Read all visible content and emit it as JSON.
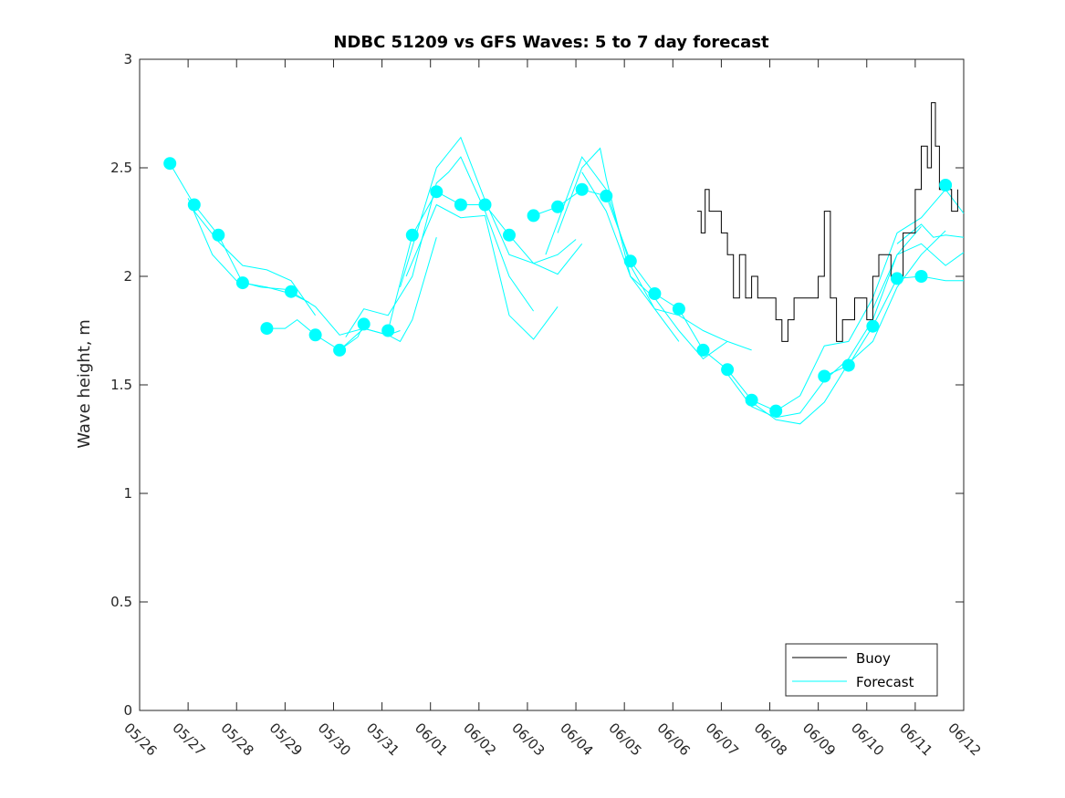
{
  "chart_data": {
    "type": "line",
    "title": "NDBC 51209 vs GFS Waves: 5 to 7 day forecast",
    "xlabel": "",
    "ylabel": "Wave height, m",
    "x_unit": "day",
    "xlim": [
      "05/26",
      "06/12"
    ],
    "ylim": [
      0,
      3
    ],
    "x_ticks": [
      "05/26",
      "05/27",
      "05/28",
      "05/29",
      "05/30",
      "05/31",
      "06/01",
      "06/02",
      "06/03",
      "06/04",
      "06/05",
      "06/06",
      "06/07",
      "06/08",
      "06/09",
      "06/10",
      "06/11",
      "06/12"
    ],
    "y_ticks": [
      "0",
      "0.5",
      "1",
      "1.5",
      "2",
      "2.5",
      "3"
    ],
    "grid": false,
    "legend_position": "bottom-right",
    "colors": {
      "buoy": "#000000",
      "forecast": "#00ffff",
      "axes": "#262626"
    },
    "legend": [
      {
        "label": "Buoy",
        "color": "#000000"
      },
      {
        "label": "Forecast",
        "color": "#00ffff"
      }
    ],
    "buoy": {
      "name": "Buoy",
      "points": [
        [
          "06/06 12:00",
          2.3
        ],
        [
          "06/06 14:00",
          2.2
        ],
        [
          "06/06 16:00",
          2.4
        ],
        [
          "06/06 18:00",
          2.3
        ],
        [
          "06/07 00:00",
          2.2
        ],
        [
          "06/07 03:00",
          2.1
        ],
        [
          "06/07 06:00",
          1.9
        ],
        [
          "06/07 09:00",
          2.1
        ],
        [
          "06/07 12:00",
          1.9
        ],
        [
          "06/07 15:00",
          2.0
        ],
        [
          "06/07 18:00",
          1.9
        ],
        [
          "06/08 00:00",
          1.9
        ],
        [
          "06/08 03:00",
          1.8
        ],
        [
          "06/08 06:00",
          1.7
        ],
        [
          "06/08 09:00",
          1.8
        ],
        [
          "06/08 12:00",
          1.9
        ],
        [
          "06/08 18:00",
          1.9
        ],
        [
          "06/09 00:00",
          2.0
        ],
        [
          "06/09 03:00",
          2.3
        ],
        [
          "06/09 06:00",
          1.9
        ],
        [
          "06/09 09:00",
          1.7
        ],
        [
          "06/09 12:00",
          1.8
        ],
        [
          "06/09 18:00",
          1.9
        ],
        [
          "06/10 00:00",
          1.8
        ],
        [
          "06/10 03:00",
          2.0
        ],
        [
          "06/10 06:00",
          2.1
        ],
        [
          "06/10 12:00",
          2.0
        ],
        [
          "06/10 18:00",
          2.2
        ],
        [
          "06/11 00:00",
          2.4
        ],
        [
          "06/11 03:00",
          2.6
        ],
        [
          "06/11 06:00",
          2.5
        ],
        [
          "06/11 08:00",
          2.8
        ],
        [
          "06/11 10:00",
          2.6
        ],
        [
          "06/11 12:00",
          2.4
        ],
        [
          "06/11 18:00",
          2.3
        ],
        [
          "06/11 21:00",
          2.4
        ]
      ]
    },
    "forecast_dots": [
      [
        "05/26 15:00",
        2.52
      ],
      [
        "05/27 03:00",
        2.33
      ],
      [
        "05/27 15:00",
        2.19
      ],
      [
        "05/28 03:00",
        1.97
      ],
      [
        "05/28 15:00",
        1.76
      ],
      [
        "05/29 03:00",
        1.93
      ],
      [
        "05/29 15:00",
        1.73
      ],
      [
        "05/30 03:00",
        1.66
      ],
      [
        "05/30 15:00",
        1.78
      ],
      [
        "05/31 03:00",
        1.75
      ],
      [
        "05/31 15:00",
        2.19
      ],
      [
        "06/01 03:00",
        2.39
      ],
      [
        "06/01 15:00",
        2.33
      ],
      [
        "06/02 03:00",
        2.33
      ],
      [
        "06/02 15:00",
        2.19
      ],
      [
        "06/03 03:00",
        2.28
      ],
      [
        "06/03 15:00",
        2.32
      ],
      [
        "06/04 03:00",
        2.4
      ],
      [
        "06/04 15:00",
        2.37
      ],
      [
        "06/05 03:00",
        2.07
      ],
      [
        "06/05 15:00",
        1.92
      ],
      [
        "06/06 03:00",
        1.85
      ],
      [
        "06/06 15:00",
        1.66
      ],
      [
        "06/07 03:00",
        1.57
      ],
      [
        "06/07 15:00",
        1.43
      ],
      [
        "06/08 03:00",
        1.38
      ],
      [
        "06/09 03:00",
        1.54
      ],
      [
        "06/09 15:00",
        1.59
      ],
      [
        "06/10 03:00",
        1.77
      ],
      [
        "06/10 15:00",
        1.99
      ],
      [
        "06/11 03:00",
        2.0
      ],
      [
        "06/11 15:00",
        2.42
      ]
    ],
    "forecast_runs": [
      {
        "name": "Forecast",
        "points": [
          [
            "05/26 15:00",
            2.52
          ],
          [
            "05/27 03:00",
            2.33
          ],
          [
            "05/27 15:00",
            2.19
          ],
          [
            "05/28 03:00",
            1.97
          ],
          [
            "05/28 15:00",
            1.95
          ],
          [
            "05/29 03:00",
            1.92
          ],
          [
            "05/29 12:00",
            1.88
          ]
        ]
      },
      {
        "name": "Forecast",
        "points": [
          [
            "05/27 03:00",
            2.3
          ],
          [
            "05/27 15:00",
            2.16
          ],
          [
            "05/28 03:00",
            2.05
          ],
          [
            "05/28 15:00",
            2.03
          ],
          [
            "05/29 03:00",
            1.98
          ],
          [
            "05/29 15:00",
            1.82
          ]
        ]
      },
      {
        "name": "Forecast",
        "points": [
          [
            "05/27 00:00",
            2.36
          ],
          [
            "05/27 12:00",
            2.1
          ],
          [
            "05/28 00:00",
            1.98
          ],
          [
            "05/28 12:00",
            1.95
          ],
          [
            "05/29 00:00",
            1.94
          ]
        ]
      },
      {
        "name": "Forecast",
        "points": [
          [
            "05/28 15:00",
            1.76
          ],
          [
            "05/29 00:00",
            1.76
          ],
          [
            "05/29 06:00",
            1.8
          ],
          [
            "05/29 15:00",
            1.73
          ],
          [
            "05/30 03:00",
            1.66
          ],
          [
            "05/30 12:00",
            1.72
          ],
          [
            "05/30 15:00",
            1.78
          ]
        ]
      },
      {
        "name": "Forecast",
        "points": [
          [
            "05/29 03:00",
            1.93
          ],
          [
            "05/29 15:00",
            1.86
          ],
          [
            "05/30 03:00",
            1.73
          ],
          [
            "05/30 15:00",
            1.76
          ],
          [
            "05/31 03:00",
            1.73
          ],
          [
            "05/31 09:00",
            1.75
          ]
        ]
      },
      {
        "name": "Forecast",
        "points": [
          [
            "05/30 03:00",
            1.66
          ],
          [
            "05/30 15:00",
            1.76
          ],
          [
            "05/31 03:00",
            1.73
          ],
          [
            "05/31 09:00",
            1.7
          ],
          [
            "05/31 15:00",
            1.8
          ],
          [
            "06/01 03:00",
            2.18
          ]
        ]
      },
      {
        "name": "Forecast",
        "points": [
          [
            "05/30 06:00",
            1.72
          ],
          [
            "05/30 15:00",
            1.85
          ],
          [
            "05/31 03:00",
            1.82
          ],
          [
            "05/31 15:00",
            2.0
          ],
          [
            "06/01 03:00",
            2.43
          ],
          [
            "06/01 09:00",
            2.48
          ],
          [
            "06/01 15:00",
            2.55
          ],
          [
            "06/02 03:00",
            2.3
          ],
          [
            "06/02 15:00",
            2.0
          ],
          [
            "06/03 03:00",
            1.84
          ]
        ]
      },
      {
        "name": "Forecast",
        "points": [
          [
            "05/31 03:00",
            1.75
          ],
          [
            "05/31 15:00",
            2.19
          ],
          [
            "06/01 03:00",
            2.39
          ],
          [
            "06/01 15:00",
            2.33
          ],
          [
            "06/02 03:00",
            2.33
          ],
          [
            "06/02 15:00",
            2.19
          ],
          [
            "06/03 03:00",
            2.06
          ],
          [
            "06/03 15:00",
            2.01
          ],
          [
            "06/04 03:00",
            2.15
          ]
        ]
      },
      {
        "name": "Forecast",
        "points": [
          [
            "05/31 09:00",
            1.95
          ],
          [
            "06/01 03:00",
            2.5
          ],
          [
            "06/01 15:00",
            2.64
          ],
          [
            "06/02 03:00",
            2.35
          ],
          [
            "06/02 15:00",
            2.1
          ],
          [
            "06/03 03:00",
            2.06
          ],
          [
            "06/03 15:00",
            2.1
          ],
          [
            "06/04 00:00",
            2.17
          ]
        ]
      },
      {
        "name": "Forecast",
        "points": [
          [
            "05/31 12:00",
            2.0
          ],
          [
            "06/01 03:00",
            2.33
          ],
          [
            "06/01 15:00",
            2.27
          ],
          [
            "06/02 03:00",
            2.28
          ],
          [
            "06/02 15:00",
            1.82
          ],
          [
            "06/03 03:00",
            1.71
          ],
          [
            "06/03 15:00",
            1.86
          ]
        ]
      },
      {
        "name": "Forecast",
        "points": [
          [
            "06/03 03:00",
            2.28
          ],
          [
            "06/03 15:00",
            2.32
          ],
          [
            "06/04 03:00",
            2.4
          ],
          [
            "06/04 15:00",
            2.37
          ],
          [
            "06/05 03:00",
            2.07
          ],
          [
            "06/05 15:00",
            1.92
          ],
          [
            "06/06 03:00",
            1.85
          ],
          [
            "06/06 15:00",
            1.66
          ],
          [
            "06/07 03:00",
            1.57
          ],
          [
            "06/07 15:00",
            1.43
          ],
          [
            "06/08 03:00",
            1.38
          ]
        ]
      },
      {
        "name": "Forecast",
        "points": [
          [
            "06/03 15:00",
            2.2
          ],
          [
            "06/04 03:00",
            2.5
          ],
          [
            "06/04 12:00",
            2.59
          ],
          [
            "06/04 15:00",
            2.45
          ],
          [
            "06/05 03:00",
            2.0
          ],
          [
            "06/05 15:00",
            1.85
          ],
          [
            "06/06 03:00",
            1.82
          ],
          [
            "06/06 15:00",
            1.75
          ],
          [
            "06/07 03:00",
            1.7
          ],
          [
            "06/07 15:00",
            1.66
          ]
        ]
      },
      {
        "name": "Forecast",
        "points": [
          [
            "06/03 09:00",
            2.1
          ],
          [
            "06/04 03:00",
            2.55
          ],
          [
            "06/04 15:00",
            2.4
          ],
          [
            "06/05 03:00",
            2.05
          ],
          [
            "06/05 15:00",
            1.85
          ],
          [
            "06/06 03:00",
            1.7
          ]
        ]
      },
      {
        "name": "Forecast",
        "points": [
          [
            "06/04 03:00",
            2.48
          ],
          [
            "06/04 15:00",
            2.3
          ],
          [
            "06/05 03:00",
            2.0
          ],
          [
            "06/05 15:00",
            1.9
          ],
          [
            "06/06 03:00",
            1.75
          ],
          [
            "06/06 15:00",
            1.62
          ],
          [
            "06/07 03:00",
            1.7
          ]
        ]
      },
      {
        "name": "Forecast",
        "points": [
          [
            "06/07 03:00",
            1.55
          ],
          [
            "06/07 15:00",
            1.4
          ],
          [
            "06/08 03:00",
            1.35
          ],
          [
            "06/08 15:00",
            1.37
          ],
          [
            "06/09 03:00",
            1.52
          ],
          [
            "06/09 15:00",
            1.62
          ],
          [
            "06/10 03:00",
            1.8
          ],
          [
            "06/10 15:00",
            2.1
          ],
          [
            "06/11 03:00",
            2.23
          ]
        ]
      },
      {
        "name": "Forecast",
        "points": [
          [
            "06/07 15:00",
            1.42
          ],
          [
            "06/08 03:00",
            1.34
          ],
          [
            "06/08 15:00",
            1.32
          ],
          [
            "06/09 03:00",
            1.42
          ],
          [
            "06/09 15:00",
            1.6
          ],
          [
            "06/10 03:00",
            1.7
          ],
          [
            "06/10 15:00",
            1.95
          ],
          [
            "06/11 03:00",
            2.1
          ],
          [
            "06/11 15:00",
            2.21
          ]
        ]
      },
      {
        "name": "Forecast",
        "points": [
          [
            "06/08 03:00",
            1.38
          ],
          [
            "06/08 15:00",
            1.45
          ],
          [
            "06/09 03:00",
            1.68
          ],
          [
            "06/09 15:00",
            1.7
          ],
          [
            "06/10 03:00",
            1.9
          ],
          [
            "06/10 15:00",
            2.2
          ],
          [
            "06/11 03:00",
            2.27
          ],
          [
            "06/11 15:00",
            2.4
          ],
          [
            "06/12 00:00",
            2.29
          ]
        ]
      },
      {
        "name": "Forecast",
        "points": [
          [
            "06/09 03:00",
            1.54
          ],
          [
            "06/09 15:00",
            1.59
          ],
          [
            "06/10 03:00",
            1.77
          ],
          [
            "06/10 15:00",
            1.99
          ],
          [
            "06/11 03:00",
            2.0
          ],
          [
            "06/11 15:00",
            1.98
          ],
          [
            "06/12 00:00",
            1.98
          ]
        ]
      },
      {
        "name": "Forecast",
        "points": [
          [
            "06/10 03:00",
            1.85
          ],
          [
            "06/10 15:00",
            2.1
          ],
          [
            "06/11 03:00",
            2.15
          ],
          [
            "06/11 15:00",
            2.05
          ],
          [
            "06/12 00:00",
            2.11
          ]
        ]
      },
      {
        "name": "Forecast",
        "points": [
          [
            "06/10 15:00",
            2.15
          ],
          [
            "06/11 03:00",
            2.24
          ],
          [
            "06/11 09:00",
            2.18
          ],
          [
            "06/11 15:00",
            2.19
          ],
          [
            "06/12 00:00",
            2.18
          ]
        ]
      }
    ]
  }
}
